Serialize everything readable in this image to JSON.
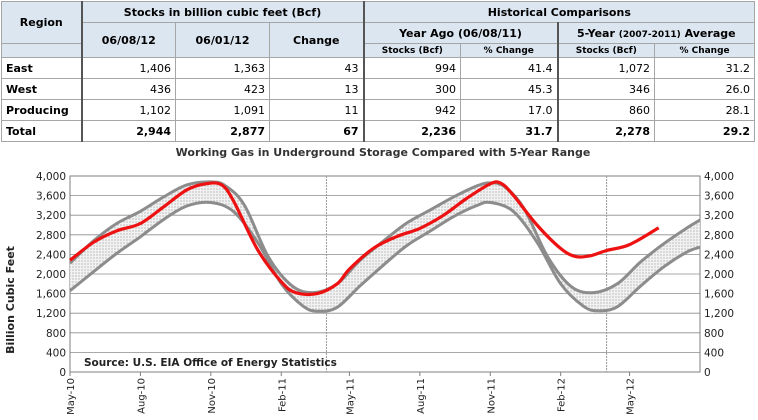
{
  "table": {
    "region_header": "Region",
    "stocks_header": "Stocks in billion cubic feet (Bcf)",
    "hist_header": "Historical Comparisons",
    "col_date1": "06/08/12",
    "col_date2": "06/01/12",
    "col_change": "Change",
    "year_ago_header": "Year Ago (06/08/11)",
    "five_year_main": "5-Year",
    "five_year_small": "(2007-2011)",
    "five_year_tail": "Average",
    "sub_stocks": "Stocks (Bcf)",
    "sub_pct": "% Change",
    "rows": [
      {
        "region": "East",
        "d1": "1,406",
        "d2": "1,363",
        "change": "43",
        "ya_stocks": "994",
        "ya_pct": "41.4",
        "fy_stocks": "1,072",
        "fy_pct": "31.2"
      },
      {
        "region": "West",
        "d1": "436",
        "d2": "423",
        "change": "13",
        "ya_stocks": "300",
        "ya_pct": "45.3",
        "fy_stocks": "346",
        "fy_pct": "26.0"
      },
      {
        "region": "Producing",
        "d1": "1,102",
        "d2": "1,091",
        "change": "11",
        "ya_stocks": "942",
        "ya_pct": "17.0",
        "fy_stocks": "860",
        "fy_pct": "28.1"
      }
    ],
    "total": {
      "region": "Total",
      "d1": "2,944",
      "d2": "2,877",
      "change": "67",
      "ya_stocks": "2,236",
      "ya_pct": "31.7",
      "fy_stocks": "2,278",
      "fy_pct": "29.2"
    }
  },
  "chart_data": {
    "type": "area",
    "title": "Working Gas in Underground Storage Compared with 5-Year Range",
    "ylabel": "Billion Cubic Feet",
    "source": "Source:  U.S. EIA Office of Energy Statistics",
    "ylim": [
      0,
      4000
    ],
    "yticks": [
      0,
      400,
      800,
      1200,
      1600,
      2000,
      2400,
      2800,
      3200,
      3600,
      4000
    ],
    "ytick_labels": [
      "0",
      "400",
      "800",
      "1,200",
      "1,600",
      "2,000",
      "2,400",
      "2,800",
      "3,200",
      "3,600",
      "4,000"
    ],
    "xlim": [
      "2010-05-01",
      "2012-08-01"
    ],
    "xticks": [
      "2010-05-01",
      "2010-08-01",
      "2010-11-01",
      "2011-02-01",
      "2011-05-01",
      "2011-08-01",
      "2011-11-01",
      "2012-02-01",
      "2012-05-01"
    ],
    "xtick_labels": [
      "May-10",
      "Aug-10",
      "Nov-10",
      "Feb-11",
      "May-11",
      "Aug-11",
      "Nov-11",
      "Feb-12",
      "May-12"
    ],
    "year_dividers": [
      "2011-04-01",
      "2012-04-01"
    ],
    "colors": {
      "current": "#ee1111",
      "range": "#8c8c8c",
      "fill": "#e4e4e4",
      "grid": "#8c8c8c"
    },
    "series": [
      {
        "role": "current",
        "x": [
          "2010-05-01",
          "2010-06-01",
          "2010-07-01",
          "2010-08-01",
          "2010-09-01",
          "2010-10-01",
          "2010-10-25",
          "2010-11-15",
          "2010-12-01",
          "2011-01-01",
          "2011-02-01",
          "2011-02-20",
          "2011-03-20",
          "2011-04-15",
          "2011-05-01",
          "2011-06-01",
          "2011-07-01",
          "2011-08-01",
          "2011-09-01",
          "2011-10-01",
          "2011-11-01",
          "2011-11-15",
          "2011-12-01",
          "2012-01-01",
          "2012-02-01",
          "2012-02-20",
          "2012-03-10",
          "2012-04-01",
          "2012-05-01",
          "2012-06-08"
        ],
        "y": [
          2280,
          2650,
          2880,
          3030,
          3380,
          3720,
          3840,
          3820,
          3480,
          2500,
          1840,
          1620,
          1600,
          1800,
          2100,
          2520,
          2760,
          2930,
          3200,
          3540,
          3840,
          3852,
          3610,
          3000,
          2520,
          2360,
          2370,
          2480,
          2600,
          2944
        ]
      },
      {
        "role": "range-max",
        "x": [
          "2010-05-01",
          "2010-06-01",
          "2010-07-01",
          "2010-08-01",
          "2010-09-01",
          "2010-10-01",
          "2010-11-01",
          "2010-11-20",
          "2010-12-15",
          "2011-01-15",
          "2011-02-15",
          "2011-03-15",
          "2011-04-15",
          "2011-05-15",
          "2011-06-15",
          "2011-07-15",
          "2011-08-15",
          "2011-09-15",
          "2011-10-15",
          "2011-11-01",
          "2011-11-20",
          "2011-12-15",
          "2012-01-15",
          "2012-02-15",
          "2012-03-15",
          "2012-04-15",
          "2012-05-15",
          "2012-06-15",
          "2012-07-15",
          "2012-08-01"
        ],
        "y": [
          2220,
          2680,
          3030,
          3280,
          3580,
          3820,
          3880,
          3800,
          3400,
          2350,
          1760,
          1620,
          1800,
          2280,
          2680,
          3040,
          3310,
          3580,
          3800,
          3860,
          3780,
          3340,
          2350,
          1740,
          1620,
          1800,
          2240,
          2620,
          2940,
          3100
        ]
      },
      {
        "role": "range-min",
        "x": [
          "2010-05-01",
          "2010-06-01",
          "2010-07-01",
          "2010-08-01",
          "2010-09-01",
          "2010-10-01",
          "2010-11-01",
          "2010-12-01",
          "2011-01-01",
          "2011-02-01",
          "2011-03-01",
          "2011-03-20",
          "2011-04-15",
          "2011-05-15",
          "2011-06-15",
          "2011-07-15",
          "2011-08-15",
          "2011-09-15",
          "2011-10-15",
          "2011-11-01",
          "2011-12-01",
          "2012-01-01",
          "2012-02-01",
          "2012-03-01",
          "2012-03-20",
          "2012-04-15",
          "2012-05-15",
          "2012-06-15",
          "2012-07-15",
          "2012-08-01"
        ],
        "y": [
          1660,
          2050,
          2420,
          2760,
          3120,
          3390,
          3460,
          3270,
          2650,
          1800,
          1350,
          1240,
          1320,
          1760,
          2190,
          2580,
          2880,
          3180,
          3400,
          3460,
          3280,
          2650,
          1800,
          1350,
          1250,
          1330,
          1750,
          2150,
          2450,
          2550
        ]
      }
    ]
  }
}
